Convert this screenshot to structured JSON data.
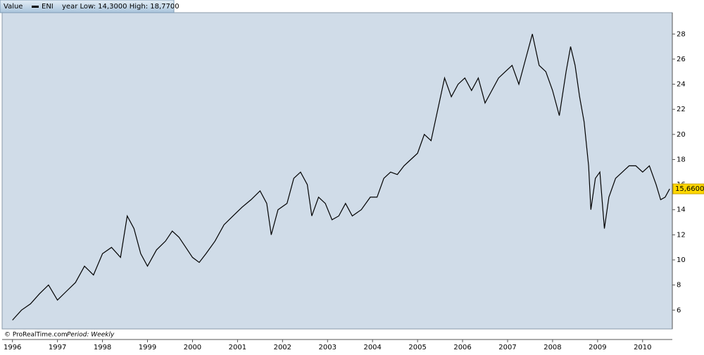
{
  "chart_data": {
    "type": "line",
    "header": {
      "label": "Value",
      "series_name": "ENI",
      "range_text": "year Low: 14,3000 High: 18,7700"
    },
    "footer": {
      "source": "© ProRealTime.com",
      "period": "Period: Weekly"
    },
    "series": [
      {
        "name": "ENI",
        "color": "#000000",
        "x": [
          1996.0,
          1996.2,
          1996.4,
          1996.6,
          1996.8,
          1997.0,
          1997.2,
          1997.4,
          1997.6,
          1997.8,
          1998.0,
          1998.2,
          1998.4,
          1998.55,
          1998.7,
          1998.85,
          1999.0,
          1999.2,
          1999.4,
          1999.55,
          1999.7,
          1999.85,
          2000.0,
          2000.15,
          2000.3,
          2000.5,
          2000.7,
          2000.9,
          2001.1,
          2001.3,
          2001.5,
          2001.65,
          2001.75,
          2001.9,
          2002.1,
          2002.25,
          2002.4,
          2002.55,
          2002.65,
          2002.8,
          2002.95,
          2003.1,
          2003.25,
          2003.4,
          2003.55,
          2003.75,
          2003.95,
          2004.1,
          2004.25,
          2004.4,
          2004.55,
          2004.7,
          2004.85,
          2005.0,
          2005.15,
          2005.3,
          2005.45,
          2005.6,
          2005.75,
          2005.9,
          2006.05,
          2006.2,
          2006.35,
          2006.5,
          2006.65,
          2006.8,
          2006.95,
          2007.1,
          2007.25,
          2007.4,
          2007.55,
          2007.7,
          2007.85,
          2008.0,
          2008.15,
          2008.3,
          2008.4,
          2008.5,
          2008.6,
          2008.7,
          2008.8,
          2008.85,
          2008.95,
          2009.05,
          2009.15,
          2009.25,
          2009.4,
          2009.55,
          2009.7,
          2009.85,
          2010.0,
          2010.15,
          2010.3,
          2010.4,
          2010.5,
          2010.6
        ],
        "values": [
          5.2,
          6.0,
          6.5,
          7.3,
          8.0,
          6.8,
          7.5,
          8.2,
          9.5,
          8.8,
          10.5,
          11.0,
          10.2,
          13.5,
          12.5,
          10.5,
          9.5,
          10.8,
          11.5,
          12.3,
          11.8,
          11.0,
          10.2,
          9.8,
          10.5,
          11.5,
          12.8,
          13.5,
          14.2,
          14.8,
          15.5,
          14.5,
          12.0,
          14.0,
          14.5,
          16.5,
          17.0,
          16.0,
          13.5,
          15.0,
          14.5,
          13.2,
          13.5,
          14.5,
          13.5,
          14.0,
          15.0,
          15.0,
          16.5,
          17.0,
          16.8,
          17.5,
          18.0,
          18.5,
          20.0,
          19.5,
          22.0,
          24.5,
          23.0,
          24.0,
          24.5,
          23.5,
          24.5,
          22.5,
          23.5,
          24.5,
          25.0,
          25.5,
          24.0,
          26.0,
          28.0,
          25.5,
          25.0,
          23.5,
          21.5,
          25.0,
          27.0,
          25.5,
          23.0,
          21.0,
          17.5,
          14.0,
          16.5,
          17.0,
          12.5,
          15.0,
          16.5,
          17.0,
          17.5,
          17.5,
          17.0,
          17.5,
          16.0,
          14.8,
          15.0,
          15.66
        ]
      }
    ],
    "last_price": {
      "value": 15.66,
      "label": "15,6600"
    },
    "xlim": [
      1995.77,
      2010.66
    ],
    "xticks": [
      1996,
      1997,
      1998,
      1999,
      2000,
      2001,
      2002,
      2003,
      2004,
      2005,
      2006,
      2007,
      2008,
      2009,
      2010
    ],
    "ylim": [
      4.5,
      29.7
    ],
    "yticks": [
      6,
      8,
      10,
      12,
      14,
      16,
      18,
      20,
      22,
      24,
      26,
      28
    ],
    "background": "#d0dce8"
  }
}
